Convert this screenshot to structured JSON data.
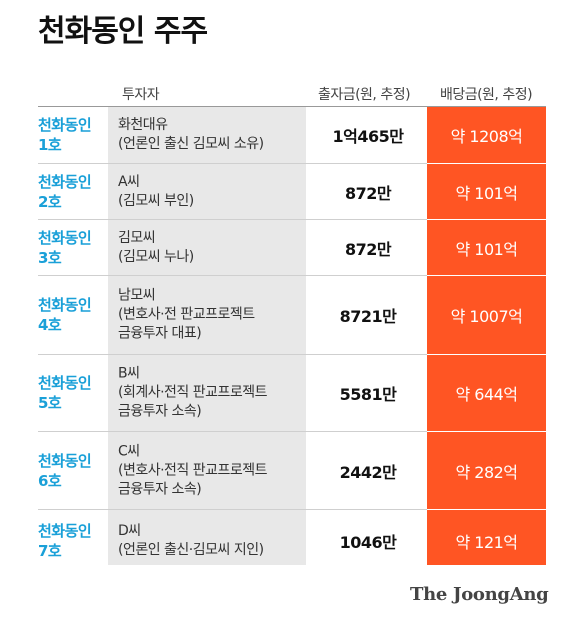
{
  "title": "천화동인 주주",
  "headers": {
    "investor": "투자자",
    "capital": "출자금(원, 추정)",
    "dividend": "배당금(원, 추정)"
  },
  "rows": [
    {
      "name1": "천화동인",
      "name2": "1호",
      "inv1": "화천대유",
      "inv2": "(언론인 출신 김모씨 소유)",
      "inv3": "",
      "capital": "1억465만",
      "dividend": "약 1208억"
    },
    {
      "name1": "천화동인",
      "name2": "2호",
      "inv1": "A씨",
      "inv2": "(김모씨 부인)",
      "inv3": "",
      "capital": "872만",
      "dividend": "약 101억"
    },
    {
      "name1": "천화동인",
      "name2": "3호",
      "inv1": "김모씨",
      "inv2": "(김모씨 누나)",
      "inv3": "",
      "capital": "872만",
      "dividend": "약 101억"
    },
    {
      "name1": "천화동인",
      "name2": "4호",
      "inv1": "남모씨",
      "inv2": "(변호사·전 판교프로젝트",
      "inv3": "금융투자 대표)",
      "capital": "8721만",
      "dividend": "약 1007억"
    },
    {
      "name1": "천화동인",
      "name2": "5호",
      "inv1": "B씨",
      "inv2": "(회계사·전직 판교프로젝트",
      "inv3": "금융투자 소속)",
      "capital": "5581만",
      "dividend": "약 644억"
    },
    {
      "name1": "천화동인",
      "name2": "6호",
      "inv1": "C씨",
      "inv2": "(변호사·전직 판교프로젝트",
      "inv3": "금융투자 소속)",
      "capital": "2442만",
      "dividend": "약 282억"
    },
    {
      "name1": "천화동인",
      "name2": "7호",
      "inv1": "D씨",
      "inv2": "(언론인 출신·김모씨 지인)",
      "inv3": "",
      "capital": "1046만",
      "dividend": "약 121억"
    }
  ],
  "logo": "The JoongAng",
  "colors": {
    "accent_blue": "#1aa0d8",
    "dividend_bg": "#ff5523",
    "investor_bg": "#e8e8e8"
  }
}
